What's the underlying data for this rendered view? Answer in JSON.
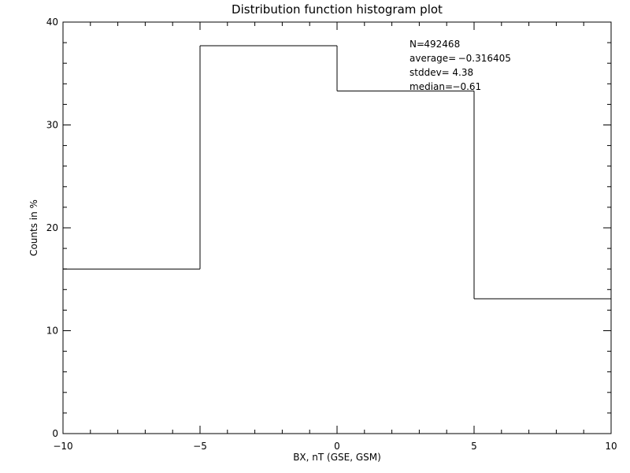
{
  "chart_data": {
    "type": "bar",
    "style": "step-histogram",
    "title": "Distribution function histogram plot",
    "xlabel": "BX, nT (GSE, GSM)",
    "ylabel": "Counts in %",
    "xlim": [
      -10,
      10
    ],
    "ylim": [
      0,
      40
    ],
    "bin_edges": [
      -10,
      -5,
      0,
      5,
      10
    ],
    "values": [
      16.0,
      37.7,
      33.3,
      13.1
    ],
    "x_ticks": [
      -10,
      -5,
      0,
      5,
      10
    ],
    "x_tick_labels": [
      "−10",
      "−5",
      "0",
      "5",
      "10"
    ],
    "y_ticks": [
      0,
      10,
      20,
      30,
      40
    ],
    "y_tick_labels": [
      "0",
      "10",
      "20",
      "30",
      "40"
    ],
    "x_minor_step": 1,
    "y_minor_step": 2,
    "grid": false,
    "stats": [
      {
        "label": "N=",
        "value": "492468"
      },
      {
        "label": "average=",
        "value": "−0.316405"
      },
      {
        "label": "stddev=",
        "value": "4.38"
      },
      {
        "label": "median=",
        "value": "−0.61"
      }
    ],
    "line_color": "#000000",
    "background": "#ffffff"
  }
}
